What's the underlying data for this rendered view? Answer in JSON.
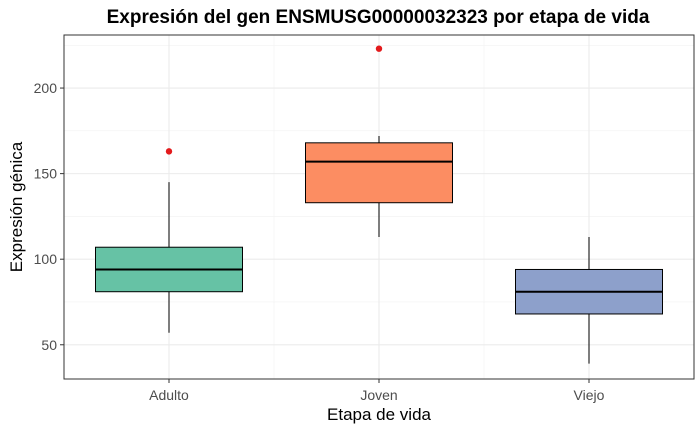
{
  "chart_data": {
    "type": "boxplot",
    "title": "Expresión del gen ENSMUSG00000032323 por etapa de vida",
    "xlabel": "Etapa de vida",
    "ylabel": "Expresión génica",
    "categories": [
      "Adulto",
      "Joven",
      "Viejo"
    ],
    "ylim": [
      30,
      231
    ],
    "yticks": [
      50,
      100,
      150,
      200
    ],
    "grid": true,
    "boxes": [
      {
        "category": "Adulto",
        "whisker_low": 57,
        "q1": 81,
        "median": 94,
        "q3": 107,
        "whisker_high": 145,
        "outliers": [
          163
        ],
        "color": "#66c2a5"
      },
      {
        "category": "Joven",
        "whisker_low": 113,
        "q1": 133,
        "median": 157,
        "q3": 168,
        "whisker_high": 172,
        "outliers": [
          223
        ],
        "color": "#fc8d62"
      },
      {
        "category": "Viejo",
        "whisker_low": 39,
        "q1": 68,
        "median": 81,
        "q3": 94,
        "whisker_high": 113,
        "outliers": [],
        "color": "#8da0cb"
      }
    ],
    "outlier_color": "#e31a1c"
  }
}
